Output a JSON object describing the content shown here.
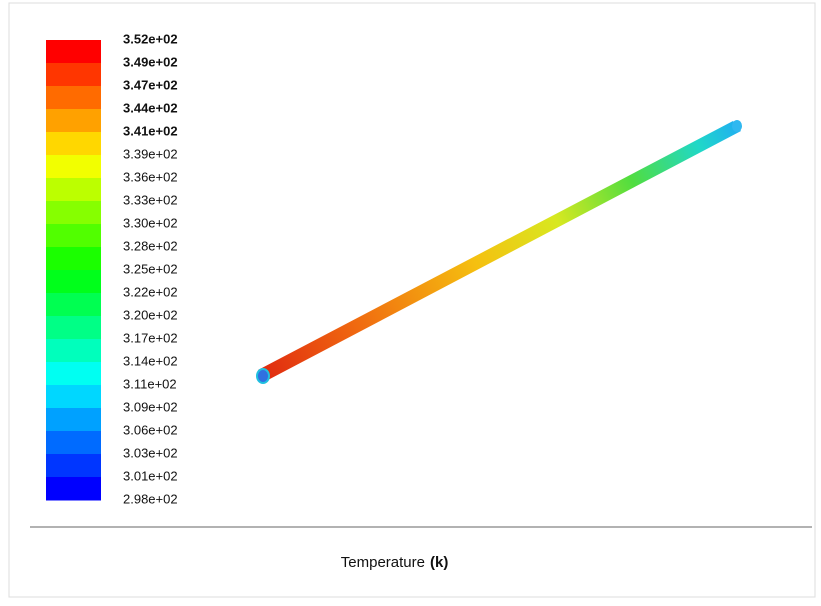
{
  "colorbar": {
    "labels": [
      "3.52e+02",
      "3.49e+02",
      "3.47e+02",
      "3.44e+02",
      "3.41e+02",
      "3.39e+02",
      "3.36e+02",
      "3.33e+02",
      "3.30e+02",
      "3.28e+02",
      "3.25e+02",
      "3.22e+02",
      "3.20e+02",
      "3.17e+02",
      "3.14e+02",
      "3.11e+02",
      "3.09e+02",
      "3.06e+02",
      "3.03e+02",
      "3.01e+02",
      "2.98e+02"
    ]
  },
  "caption": {
    "quantity": "Temperature",
    "unit": "(k)"
  }
}
